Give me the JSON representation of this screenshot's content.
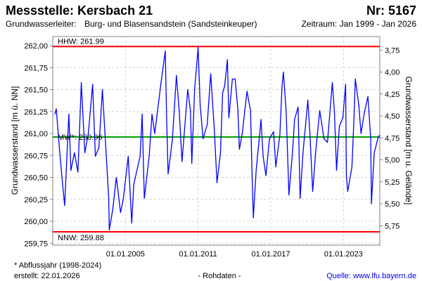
{
  "header": {
    "title": "Messstelle: Kersbach 21",
    "number": "Nr: 5167",
    "aquifer_label": "Grundwasserleiter:",
    "aquifer": "Burg- und Blasensandstein (Sandsteinkeuper)",
    "period": "Zeitraum: Jan 1999 - Jan 2026"
  },
  "footer": {
    "note": "* Abflussjahr (1998-2024)",
    "created": "erstellt:  22.01.2026",
    "raw": "- Rohdaten -",
    "source": "Quelle: www.lfu.bayern.de"
  },
  "colors": {
    "series": "#0000ff",
    "extreme": "#ff0000",
    "mean": "#00a000",
    "grid": "#d0d0d0"
  },
  "chart_data": {
    "type": "line",
    "title": "Messstelle: Kersbach 21",
    "xlabel": "",
    "ylabel": "Grundwasserstand [m ü. NN]",
    "y2label": "Grundwasserstand [m u. Gelände]",
    "xlim": [
      1999.0,
      2026.0
    ],
    "ylim": [
      259.75,
      262.05
    ],
    "ground_level": 265.7,
    "grid": true,
    "x_ticks": [
      {
        "value": 2005,
        "label": "01.01.2005"
      },
      {
        "value": 2011,
        "label": "01.01.2011"
      },
      {
        "value": 2017,
        "label": "01.01.2017"
      },
      {
        "value": 2023,
        "label": "01.01.2023"
      }
    ],
    "y_ticks": [
      "259,75",
      "260,00",
      "260,25",
      "260,50",
      "260,75",
      "261,00",
      "261,25",
      "261,50",
      "261,75",
      "262,00"
    ],
    "y2_ticks": [
      "3,75",
      "4,00",
      "4,25",
      "4,50",
      "4,75",
      "5,00",
      "5,25",
      "5,50",
      "5,75"
    ],
    "reference_lines": [
      {
        "name": "HHW",
        "label": "HHW: 261.99",
        "value": 261.99,
        "color": "#ff0000"
      },
      {
        "name": "MW",
        "label": "MW*: 260.96",
        "value": 260.96,
        "color": "#00a000"
      },
      {
        "name": "NNW",
        "label": "NNW: 259.88",
        "value": 259.88,
        "color": "#ff0000"
      }
    ],
    "series": [
      {
        "name": "Grundwasserstand",
        "points": [
          [
            1999.17,
            261.22
          ],
          [
            1999.29,
            261.28
          ],
          [
            1999.58,
            260.78
          ],
          [
            1999.75,
            260.52
          ],
          [
            1999.98,
            260.18
          ],
          [
            2000.33,
            261.22
          ],
          [
            2000.5,
            260.58
          ],
          [
            2000.79,
            260.78
          ],
          [
            2001.08,
            260.56
          ],
          [
            2001.36,
            261.58
          ],
          [
            2001.65,
            260.78
          ],
          [
            2001.94,
            261.0
          ],
          [
            2002.29,
            261.56
          ],
          [
            2002.52,
            260.74
          ],
          [
            2002.81,
            260.84
          ],
          [
            2003.1,
            261.5
          ],
          [
            2003.38,
            260.84
          ],
          [
            2003.62,
            260.26
          ],
          [
            2003.67,
            259.9
          ],
          [
            2003.96,
            260.14
          ],
          [
            2004.25,
            260.5
          ],
          [
            2004.6,
            260.1
          ],
          [
            2004.83,
            260.26
          ],
          [
            2005.23,
            260.74
          ],
          [
            2005.52,
            259.98
          ],
          [
            2005.69,
            260.42
          ],
          [
            2006.21,
            260.74
          ],
          [
            2006.38,
            261.22
          ],
          [
            2006.56,
            260.26
          ],
          [
            2006.96,
            260.74
          ],
          [
            2007.19,
            261.22
          ],
          [
            2007.42,
            261.0
          ],
          [
            2007.94,
            261.58
          ],
          [
            2008.29,
            261.94
          ],
          [
            2008.4,
            261.18
          ],
          [
            2008.52,
            260.54
          ],
          [
            2008.87,
            260.92
          ],
          [
            2009.21,
            261.66
          ],
          [
            2009.44,
            261.26
          ],
          [
            2009.67,
            260.68
          ],
          [
            2010.14,
            261.5
          ],
          [
            2010.37,
            261.26
          ],
          [
            2010.48,
            260.66
          ],
          [
            2010.71,
            261.5
          ],
          [
            2011.0,
            261.98
          ],
          [
            2011.17,
            261.32
          ],
          [
            2011.41,
            260.94
          ],
          [
            2011.75,
            261.1
          ],
          [
            2012.04,
            261.68
          ],
          [
            2012.33,
            261.06
          ],
          [
            2012.56,
            260.44
          ],
          [
            2012.85,
            260.78
          ],
          [
            2013.02,
            261.46
          ],
          [
            2013.19,
            261.54
          ],
          [
            2013.42,
            261.84
          ],
          [
            2013.54,
            261.18
          ],
          [
            2013.83,
            261.62
          ],
          [
            2014.06,
            261.62
          ],
          [
            2014.29,
            261.26
          ],
          [
            2014.41,
            260.82
          ],
          [
            2014.64,
            261.0
          ],
          [
            2015.04,
            261.48
          ],
          [
            2015.33,
            261.26
          ],
          [
            2015.44,
            260.62
          ],
          [
            2015.56,
            260.04
          ],
          [
            2015.79,
            260.58
          ],
          [
            2016.02,
            260.9
          ],
          [
            2016.19,
            261.16
          ],
          [
            2016.37,
            260.74
          ],
          [
            2016.6,
            260.52
          ],
          [
            2016.89,
            260.94
          ],
          [
            2017.23,
            261.02
          ],
          [
            2017.41,
            260.62
          ],
          [
            2017.75,
            260.98
          ],
          [
            2017.93,
            261.54
          ],
          [
            2018.04,
            261.7
          ],
          [
            2018.27,
            261.24
          ],
          [
            2018.5,
            260.3
          ],
          [
            2018.79,
            260.78
          ],
          [
            2018.96,
            261.16
          ],
          [
            2019.25,
            261.3
          ],
          [
            2019.42,
            260.26
          ],
          [
            2019.66,
            260.78
          ],
          [
            2020.06,
            261.38
          ],
          [
            2020.23,
            261.0
          ],
          [
            2020.46,
            260.34
          ],
          [
            2020.7,
            260.78
          ],
          [
            2021.04,
            261.26
          ],
          [
            2021.39,
            260.94
          ],
          [
            2021.68,
            260.9
          ],
          [
            2022.08,
            261.58
          ],
          [
            2022.25,
            261.26
          ],
          [
            2022.43,
            260.58
          ],
          [
            2022.66,
            261.08
          ],
          [
            2022.95,
            261.18
          ],
          [
            2023.18,
            261.56
          ],
          [
            2023.24,
            260.52
          ],
          [
            2023.35,
            260.34
          ],
          [
            2023.7,
            260.62
          ],
          [
            2023.87,
            261.18
          ],
          [
            2023.98,
            261.62
          ],
          [
            2024.27,
            261.32
          ],
          [
            2024.45,
            261.0
          ],
          [
            2024.73,
            261.24
          ],
          [
            2025.02,
            261.42
          ],
          [
            2025.25,
            260.94
          ],
          [
            2025.31,
            260.2
          ],
          [
            2025.54,
            260.78
          ],
          [
            2025.83,
            260.94
          ],
          [
            2025.98,
            260.98
          ]
        ]
      }
    ]
  }
}
